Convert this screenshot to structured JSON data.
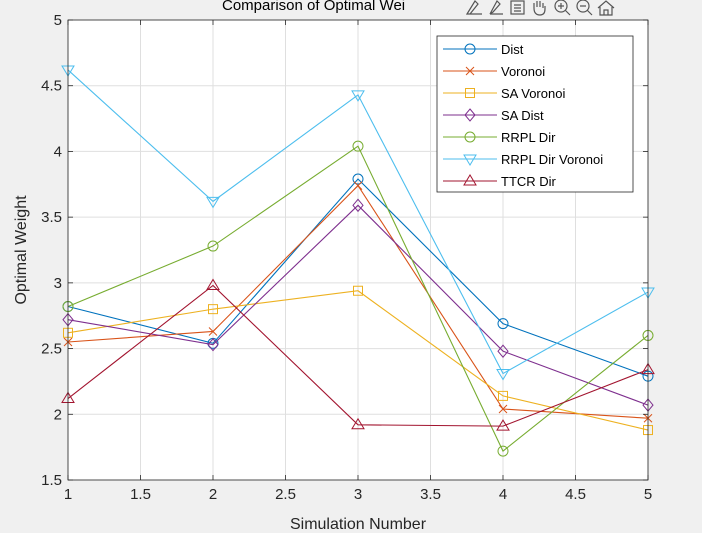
{
  "chart_data": {
    "type": "line",
    "title": "Comparison of Optimal Wei",
    "xlabel": "Simulation Number",
    "ylabel": "Optimal Weight",
    "xlim": [
      1,
      5
    ],
    "ylim": [
      1.5,
      5
    ],
    "xticks": [
      "1",
      "1.5",
      "2",
      "2.5",
      "3",
      "3.5",
      "4",
      "4.5",
      "5"
    ],
    "yticks": [
      "1.5",
      "2",
      "2.5",
      "3",
      "3.5",
      "4",
      "4.5",
      "5"
    ],
    "grid": true,
    "legend_location": "top-right",
    "x": [
      1,
      2,
      3,
      4,
      5
    ],
    "series": [
      {
        "name": "Dist",
        "color": "#0072BD",
        "marker": "circle",
        "values": [
          2.82,
          2.54,
          3.79,
          2.69,
          2.29
        ]
      },
      {
        "name": "Voronoi",
        "color": "#D95319",
        "marker": "x",
        "values": [
          2.55,
          2.63,
          3.74,
          2.04,
          1.97
        ]
      },
      {
        "name": "SA Voronoi",
        "color": "#EDB120",
        "marker": "square",
        "values": [
          2.62,
          2.8,
          2.94,
          2.14,
          1.88
        ]
      },
      {
        "name": "SA Dist",
        "color": "#7E2F8E",
        "marker": "diamond",
        "values": [
          2.72,
          2.53,
          3.59,
          2.48,
          2.07
        ]
      },
      {
        "name": "RRPL Dir",
        "color": "#77AC30",
        "marker": "circle",
        "values": [
          2.82,
          3.28,
          4.04,
          1.72,
          2.6
        ]
      },
      {
        "name": "RRPL Dir Voronoi",
        "color": "#4DBEEE",
        "marker": "triangle-down",
        "values": [
          4.62,
          3.62,
          4.43,
          2.31,
          2.93
        ]
      },
      {
        "name": "TTCR Dir",
        "color": "#A2142F",
        "marker": "triangle-up",
        "values": [
          2.12,
          2.98,
          1.92,
          1.91,
          2.34
        ]
      }
    ]
  },
  "toolbar": {
    "icons": [
      "data-tip-icon",
      "brush-icon",
      "link-data-icon",
      "pan-hand-icon",
      "zoom-in-icon",
      "zoom-out-icon",
      "home-icon"
    ]
  }
}
